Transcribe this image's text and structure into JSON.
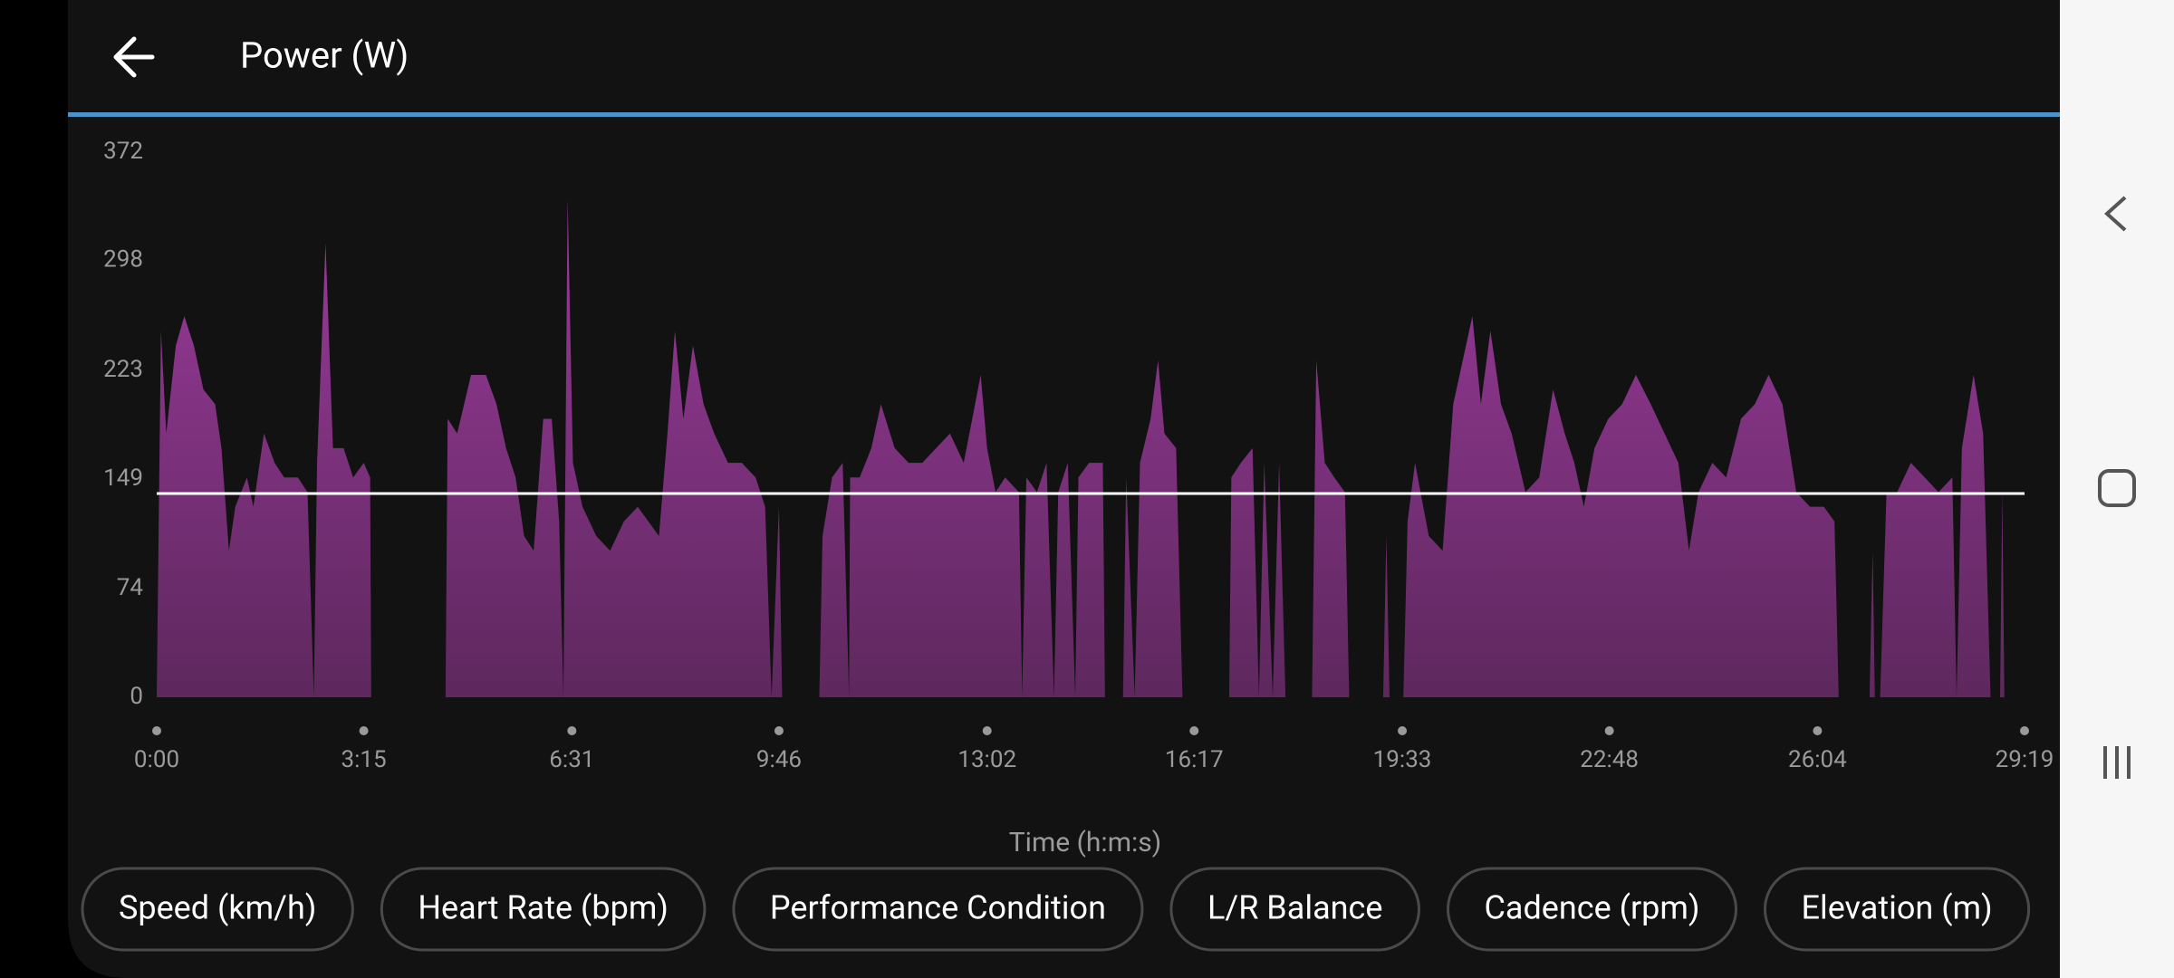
{
  "header": {
    "title": "Power (W)"
  },
  "chart_data": {
    "type": "area",
    "color": "#9b3a9b",
    "xlabel": "Time (h:m:s)",
    "x": [
      0,
      4,
      9,
      18,
      26,
      35,
      44,
      55,
      61,
      68,
      74,
      85,
      91,
      101,
      111,
      120,
      133,
      142,
      148,
      151,
      159,
      166,
      176,
      185,
      195,
      201,
      202,
      272,
      274,
      283,
      296,
      310,
      320,
      329,
      338,
      346,
      355,
      364,
      372,
      379,
      383,
      387,
      392,
      401,
      414,
      427,
      440,
      453,
      473,
      481,
      488,
      496,
      505,
      515,
      525,
      538,
      551,
      564,
      573,
      579,
      586,
      589,
      624,
      627,
      636,
      646,
      652,
      653,
      662,
      673,
      682,
      695,
      708,
      721,
      734,
      747,
      760,
      776,
      782,
      790,
      799,
      812,
      815,
      819,
      829,
      838,
      845,
      849,
      858,
      865,
      868,
      878,
      891,
      893,
      910,
      913,
      921,
      926,
      936,
      943,
      949,
      960,
      966,
      1010,
      1012,
      1021,
      1032,
      1038,
      1043,
      1051,
      1057,
      1063,
      1088,
      1092,
      1100,
      1109,
      1119,
      1123,
      1155,
      1158,
      1161,
      1174,
      1178,
      1185,
      1198,
      1211,
      1221,
      1230,
      1239,
      1247,
      1256,
      1266,
      1276,
      1289,
      1302,
      1315,
      1326,
      1335,
      1344,
      1354,
      1367,
      1380,
      1393,
      1407,
      1420,
      1433,
      1443,
      1452,
      1465,
      1478,
      1492,
      1505,
      1518,
      1531,
      1544,
      1557,
      1570,
      1580,
      1584,
      1613,
      1616,
      1618,
      1623,
      1629,
      1639,
      1652,
      1665,
      1678,
      1691,
      1695,
      1700,
      1711,
      1720,
      1727,
      1736,
      1738,
      1740
    ],
    "values": [
      0,
      250,
      180,
      240,
      260,
      240,
      210,
      200,
      170,
      100,
      130,
      150,
      130,
      180,
      160,
      150,
      150,
      140,
      0,
      160,
      310,
      170,
      170,
      150,
      160,
      150,
      0,
      0,
      190,
      180,
      220,
      220,
      200,
      170,
      150,
      110,
      100,
      190,
      190,
      120,
      0,
      340,
      160,
      130,
      110,
      100,
      120,
      130,
      110,
      180,
      250,
      190,
      240,
      200,
      180,
      160,
      160,
      150,
      130,
      0,
      130,
      0,
      0,
      110,
      150,
      160,
      0,
      150,
      150,
      170,
      200,
      170,
      160,
      160,
      170,
      180,
      160,
      220,
      170,
      140,
      150,
      140,
      0,
      150,
      140,
      160,
      0,
      140,
      160,
      0,
      150,
      160,
      160,
      0,
      0,
      150,
      0,
      160,
      190,
      230,
      180,
      170,
      0,
      0,
      150,
      160,
      170,
      0,
      160,
      0,
      160,
      0,
      0,
      230,
      160,
      150,
      140,
      0,
      0,
      110,
      0,
      0,
      120,
      160,
      110,
      100,
      200,
      230,
      260,
      200,
      250,
      200,
      180,
      140,
      150,
      210,
      180,
      160,
      130,
      170,
      190,
      200,
      220,
      200,
      180,
      160,
      100,
      140,
      160,
      150,
      190,
      200,
      220,
      200,
      140,
      130,
      130,
      120,
      0,
      0,
      100,
      0,
      0,
      140,
      140,
      160,
      150,
      140,
      150,
      0,
      170,
      220,
      180,
      0,
      0,
      140,
      0
    ],
    "average": 139,
    "xlim": [
      0,
      1759
    ],
    "xticks": [
      {
        "value": 0,
        "label": "0:00"
      },
      {
        "value": 195,
        "label": "3:15"
      },
      {
        "value": 391,
        "label": "6:31"
      },
      {
        "value": 586,
        "label": "9:46"
      },
      {
        "value": 782,
        "label": "13:02"
      },
      {
        "value": 977,
        "label": "16:17"
      },
      {
        "value": 1173,
        "label": "19:33"
      },
      {
        "value": 1368,
        "label": "22:48"
      },
      {
        "value": 1564,
        "label": "26:04"
      },
      {
        "value": 1759,
        "label": "29:19"
      }
    ],
    "ylim": [
      0,
      372
    ],
    "yticks": [
      0,
      74,
      149,
      223,
      298,
      372
    ]
  },
  "buttons": [
    "Speed (km/h)",
    "Heart Rate (bpm)",
    "Performance Condition",
    "L/R Balance",
    "Cadence (rpm)",
    "Elevation (m)"
  ]
}
